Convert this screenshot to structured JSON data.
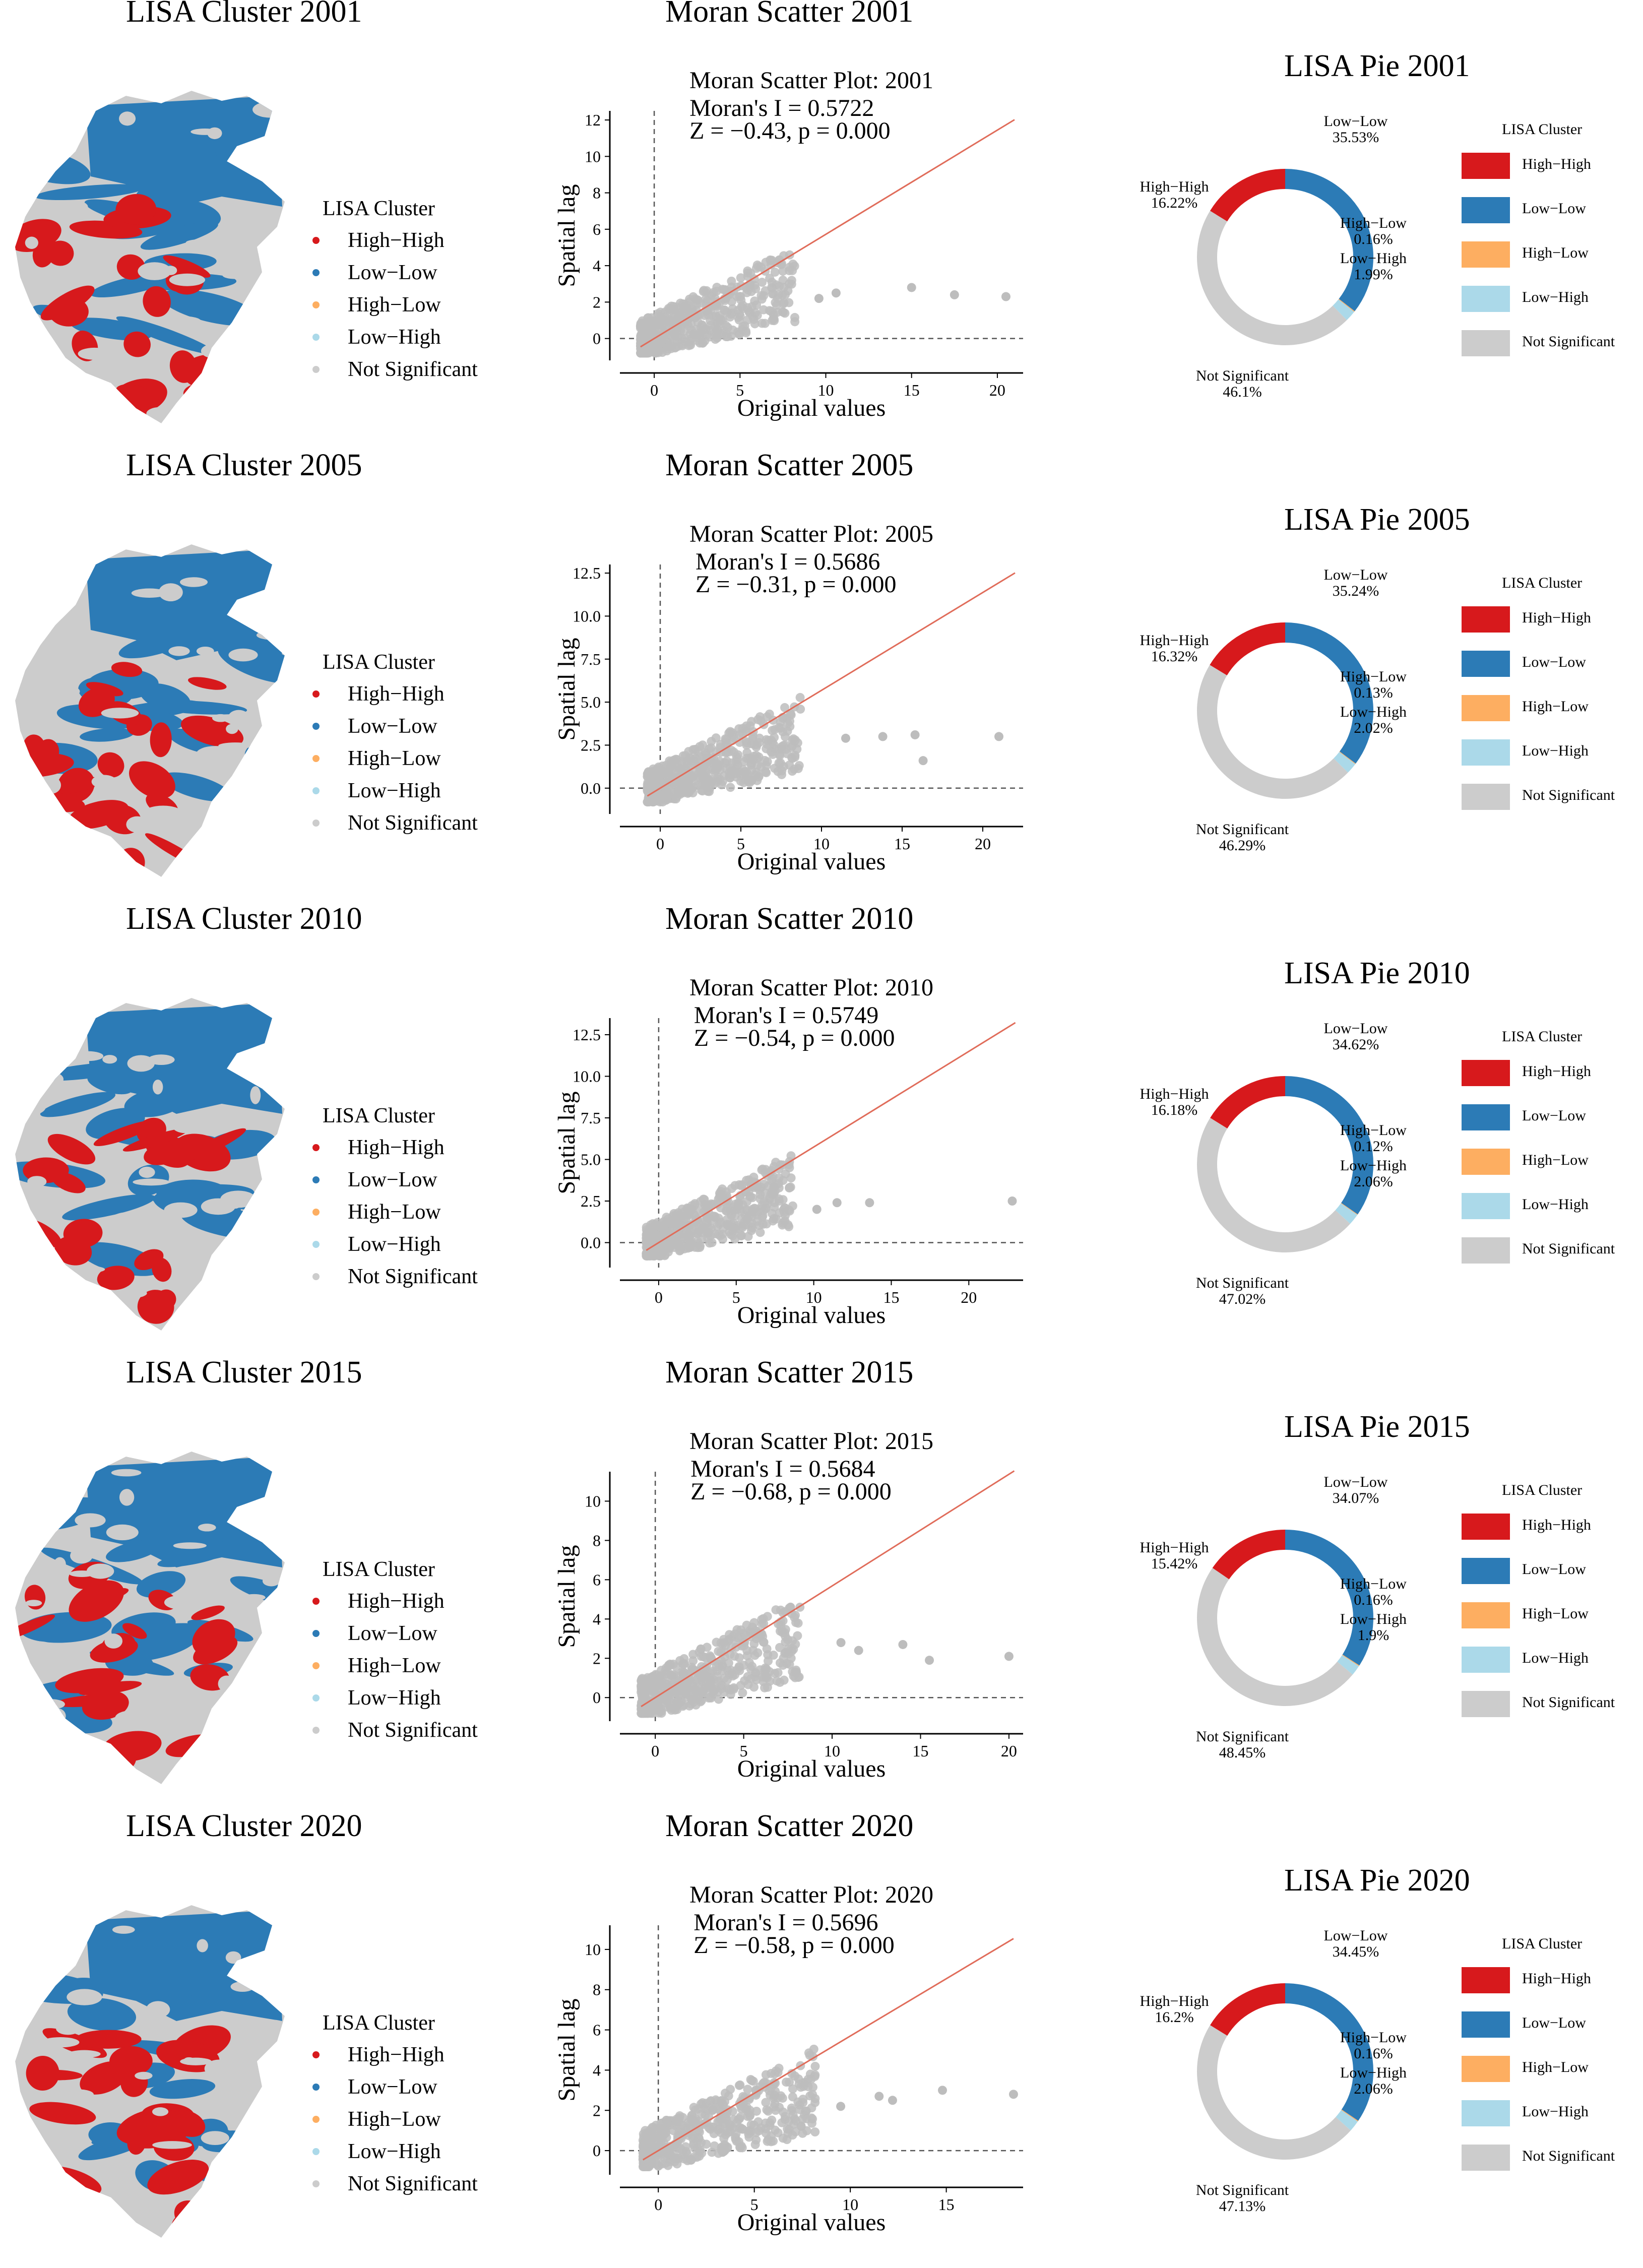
{
  "colors": {
    "High-High": "#d7191c",
    "Low-Low": "#2c7bb6",
    "High-Low": "#fdae61",
    "Low-High": "#abd9e9",
    "Not Significant": "#cccccc",
    "scatter_points": "#bdbdbd",
    "fit_line": "#e06c5a"
  },
  "legend": {
    "title": "LISA Cluster",
    "items": [
      "High−High",
      "Low−Low",
      "High−Low",
      "Low−High",
      "Not Significant"
    ],
    "keys": [
      "High-High",
      "Low-Low",
      "High-Low",
      "Low-High",
      "Not Significant"
    ]
  },
  "rows": [
    {
      "year": "2001",
      "map_title": "LISA Cluster 2001",
      "moran_title": "Moran Scatter 2001",
      "pie_title": "LISA Pie 2001"
    },
    {
      "year": "2005",
      "map_title": "LISA Cluster 2005",
      "moran_title": "Moran Scatter 2005",
      "pie_title": "LISA Pie 2005"
    },
    {
      "year": "2010",
      "map_title": "LISA Cluster 2010",
      "moran_title": "Moran Scatter 2010",
      "pie_title": "LISA Pie 2010"
    },
    {
      "year": "2015",
      "map_title": "LISA Cluster 2015",
      "moran_title": "Moran Scatter 2015",
      "pie_title": "LISA Pie 2015"
    },
    {
      "year": "2020",
      "map_title": "LISA Cluster 2020",
      "moran_title": "Moran Scatter 2020",
      "pie_title": "LISA Pie 2020"
    }
  ],
  "chart_data": [
    {
      "type": "scatter",
      "title": "Moran Scatter Plot: 2001",
      "stat1": "Moran's I = 0.5722",
      "stat2": "Z = −0.43, p = 0.000",
      "xlabel": "Original values",
      "ylabel": "Spatial lag",
      "xticks": [
        0,
        5,
        10,
        15,
        20
      ],
      "yticks": [
        0,
        2,
        4,
        6,
        8,
        10,
        12
      ],
      "xlim": [
        -2,
        21.5
      ],
      "ylim": [
        -1.2,
        12.5
      ],
      "slope": 0.5722,
      "outliers": [
        [
          15,
          2.8
        ],
        [
          17.5,
          2.4
        ],
        [
          20.5,
          2.3
        ],
        [
          10.6,
          2.5
        ],
        [
          9.6,
          2.2
        ]
      ],
      "cloud": {
        "xmax": 9,
        "ymax": 4.6
      }
    },
    {
      "type": "scatter",
      "title": "Moran Scatter Plot: 2005",
      "stat1": "Moran's I = 0.5686",
      "stat2": "Z = −0.31, p = 0.000",
      "xlabel": "Original values",
      "ylabel": "Spatial lag",
      "xticks": [
        0,
        5,
        10,
        15,
        20
      ],
      "yticks": [
        0.0,
        2.5,
        5.0,
        7.5,
        10.0,
        12.5
      ],
      "ytick_labels": [
        "0.0",
        "2.5",
        "5.0",
        "7.5",
        "10.0",
        "12.5"
      ],
      "xlim": [
        -2.5,
        22.5
      ],
      "ylim": [
        -1.5,
        13
      ],
      "slope": 0.5686,
      "outliers": [
        [
          13.8,
          3.0
        ],
        [
          15.8,
          3.1
        ],
        [
          16.3,
          1.6
        ],
        [
          21,
          3.0
        ],
        [
          11.5,
          2.9
        ]
      ],
      "cloud": {
        "xmax": 9.5,
        "ymax": 5.8
      }
    },
    {
      "type": "scatter",
      "title": "Moran Scatter Plot: 2010",
      "stat1": "Moran's I = 0.5749",
      "stat2": "Z = −0.54, p = 0.000",
      "xlabel": "Original values",
      "ylabel": "Spatial lag",
      "xticks": [
        0,
        5,
        10,
        15,
        20
      ],
      "yticks": [
        0.0,
        2.5,
        5.0,
        7.5,
        10.0,
        12.5
      ],
      "ytick_labels": [
        "0.0",
        "2.5",
        "5.0",
        "7.5",
        "10.0",
        "12.5"
      ],
      "xlim": [
        -2.5,
        23.5
      ],
      "ylim": [
        -1.5,
        13.5
      ],
      "slope": 0.5749,
      "outliers": [
        [
          11.5,
          2.4
        ],
        [
          13.6,
          2.4
        ],
        [
          22.8,
          2.5
        ],
        [
          10.2,
          2.0
        ]
      ],
      "cloud": {
        "xmax": 9.5,
        "ymax": 5.3
      }
    },
    {
      "type": "scatter",
      "title": "Moran Scatter Plot: 2015",
      "stat1": "Moran's I = 0.5684",
      "stat2": "Z = −0.68, p = 0.000",
      "xlabel": "Original values",
      "ylabel": "Spatial lag",
      "xticks": [
        0,
        5,
        10,
        15,
        20
      ],
      "yticks": [
        0,
        2,
        4,
        6,
        8,
        10
      ],
      "xlim": [
        -2,
        20.8
      ],
      "ylim": [
        -1.2,
        11.5
      ],
      "slope": 0.5684,
      "outliers": [
        [
          10.5,
          2.8
        ],
        [
          11.5,
          2.4
        ],
        [
          14,
          2.7
        ],
        [
          15.5,
          1.9
        ],
        [
          20,
          2.1
        ]
      ],
      "cloud": {
        "xmax": 9,
        "ymax": 4.6
      }
    },
    {
      "type": "scatter",
      "title": "Moran Scatter Plot: 2020",
      "stat1": "Moran's I = 0.5696",
      "stat2": "Z = −0.58, p = 0.000",
      "xlabel": "Original values",
      "ylabel": "Spatial lag",
      "xticks": [
        0,
        5,
        10,
        15
      ],
      "yticks": [
        0,
        2,
        4,
        6,
        8,
        10
      ],
      "xlim": [
        -2,
        19
      ],
      "ylim": [
        -1.2,
        11.2
      ],
      "slope": 0.5696,
      "outliers": [
        [
          11.5,
          2.7
        ],
        [
          12.2,
          2.5
        ],
        [
          14.8,
          3.0
        ],
        [
          18.5,
          2.8
        ],
        [
          9.5,
          2.2
        ]
      ],
      "cloud": {
        "xmax": 9,
        "ymax": 5.4
      }
    },
    {
      "type": "pie",
      "title": "LISA Pie 2001",
      "labels": [
        "Low−Low",
        "High−Low",
        "Low−High",
        "Not Significant",
        "High−High"
      ],
      "keys": [
        "Low-Low",
        "High-Low",
        "Low-High",
        "Not Significant",
        "High-High"
      ],
      "values": [
        35.53,
        0.16,
        1.99,
        46.1,
        16.22
      ],
      "value_labels": [
        "35.53%",
        "0.16%",
        "1.99%",
        "46.1%",
        "16.22%"
      ]
    },
    {
      "type": "pie",
      "title": "LISA Pie 2005",
      "labels": [
        "Low−Low",
        "High−Low",
        "Low−High",
        "Not Significant",
        "High−High"
      ],
      "keys": [
        "Low-Low",
        "High-Low",
        "Low-High",
        "Not Significant",
        "High-High"
      ],
      "values": [
        35.24,
        0.13,
        2.02,
        46.29,
        16.32
      ],
      "value_labels": [
        "35.24%",
        "0.13%",
        "2.02%",
        "46.29%",
        "16.32%"
      ]
    },
    {
      "type": "pie",
      "title": "LISA Pie 2010",
      "labels": [
        "Low−Low",
        "High−Low",
        "Low−High",
        "Not Significant",
        "High−High"
      ],
      "keys": [
        "Low-Low",
        "High-Low",
        "Low-High",
        "Not Significant",
        "High-High"
      ],
      "values": [
        34.62,
        0.12,
        2.06,
        47.02,
        16.18
      ],
      "value_labels": [
        "34.62%",
        "0.12%",
        "2.06%",
        "47.02%",
        "16.18%"
      ]
    },
    {
      "type": "pie",
      "title": "LISA Pie 2015",
      "labels": [
        "Low−Low",
        "High−Low",
        "Low−High",
        "Not Significant",
        "High−High"
      ],
      "keys": [
        "Low-Low",
        "High-Low",
        "Low-High",
        "Not Significant",
        "High-High"
      ],
      "values": [
        34.07,
        0.16,
        1.9,
        48.45,
        15.42
      ],
      "value_labels": [
        "34.07%",
        "0.16%",
        "1.9%",
        "48.45%",
        "15.42%"
      ]
    },
    {
      "type": "pie",
      "title": "LISA Pie 2020",
      "labels": [
        "Low−Low",
        "High−Low",
        "Low−High",
        "Not Significant",
        "High−High"
      ],
      "keys": [
        "Low-Low",
        "High-Low",
        "Low-High",
        "Not Significant",
        "High-High"
      ],
      "values": [
        34.45,
        0.16,
        2.06,
        47.13,
        16.2
      ],
      "value_labels": [
        "34.45%",
        "0.16%",
        "2.06%",
        "47.13%",
        "16.2%"
      ]
    }
  ]
}
